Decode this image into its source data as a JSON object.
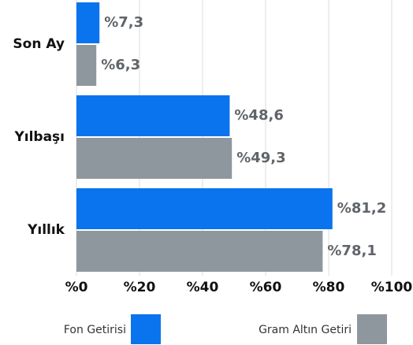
{
  "chart_data": {
    "type": "hbar",
    "categories": [
      "Son Ay",
      "Yılbaşı",
      "Yıllık"
    ],
    "series": [
      {
        "name": "Fon Getirisi",
        "color": "#0a74ee",
        "values": [
          7.3,
          48.6,
          81.2
        ],
        "value_labels": [
          "%7,3",
          "%48,6",
          "%81,2"
        ]
      },
      {
        "name": "Gram Altın Getiri",
        "color": "#8f979e",
        "values": [
          6.3,
          49.3,
          78.1
        ],
        "value_labels": [
          "%6,3",
          "%49,3",
          "%78,1"
        ]
      }
    ],
    "xlim": [
      0,
      100
    ],
    "xticks": [
      {
        "value": 0,
        "label": "%0"
      },
      {
        "value": 20,
        "label": "%20"
      },
      {
        "value": 40,
        "label": "%40"
      },
      {
        "value": 60,
        "label": "%60"
      },
      {
        "value": 80,
        "label": "%80"
      },
      {
        "value": 100,
        "label": "%100"
      }
    ],
    "grid": true
  }
}
